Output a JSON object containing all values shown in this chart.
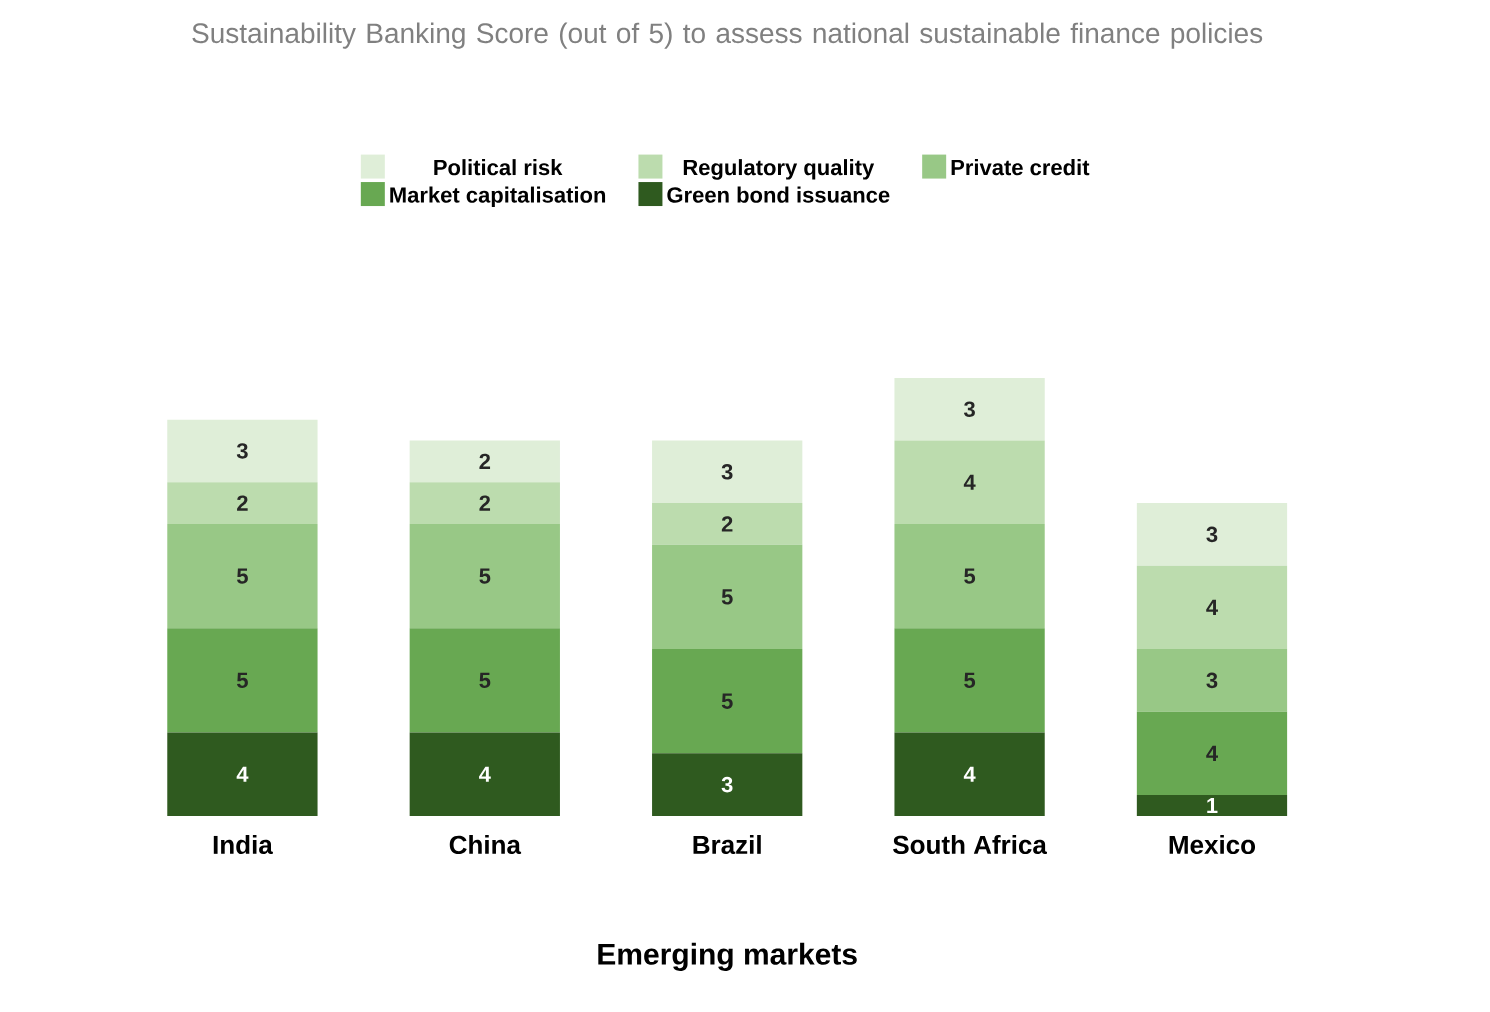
{
  "chart_data": {
    "type": "bar",
    "title": "Sustainability Banking Score (out of 5) to assess national sustainable finance policies",
    "xlabel": "Emerging markets",
    "categories": [
      "India",
      "China",
      "Brazil",
      "South Africa",
      "Mexico"
    ],
    "stacked": true,
    "data_labels": true,
    "legend": "top",
    "series": [
      {
        "name": "Green bond issuance",
        "color": "#2f5a1f",
        "values": [
          4,
          4,
          3,
          4,
          1
        ]
      },
      {
        "name": "Market capitalisation",
        "color": "#68a852",
        "values": [
          5,
          5,
          5,
          5,
          4
        ]
      },
      {
        "name": "Private credit",
        "color": "#98c886",
        "values": [
          5,
          5,
          5,
          5,
          3
        ]
      },
      {
        "name": "Regulatory quality",
        "color": "#bcdcae",
        "values": [
          2,
          2,
          2,
          4,
          4
        ]
      },
      {
        "name": "Political risk",
        "color": "#dfeed8",
        "values": [
          3,
          2,
          3,
          3,
          3
        ]
      }
    ]
  }
}
